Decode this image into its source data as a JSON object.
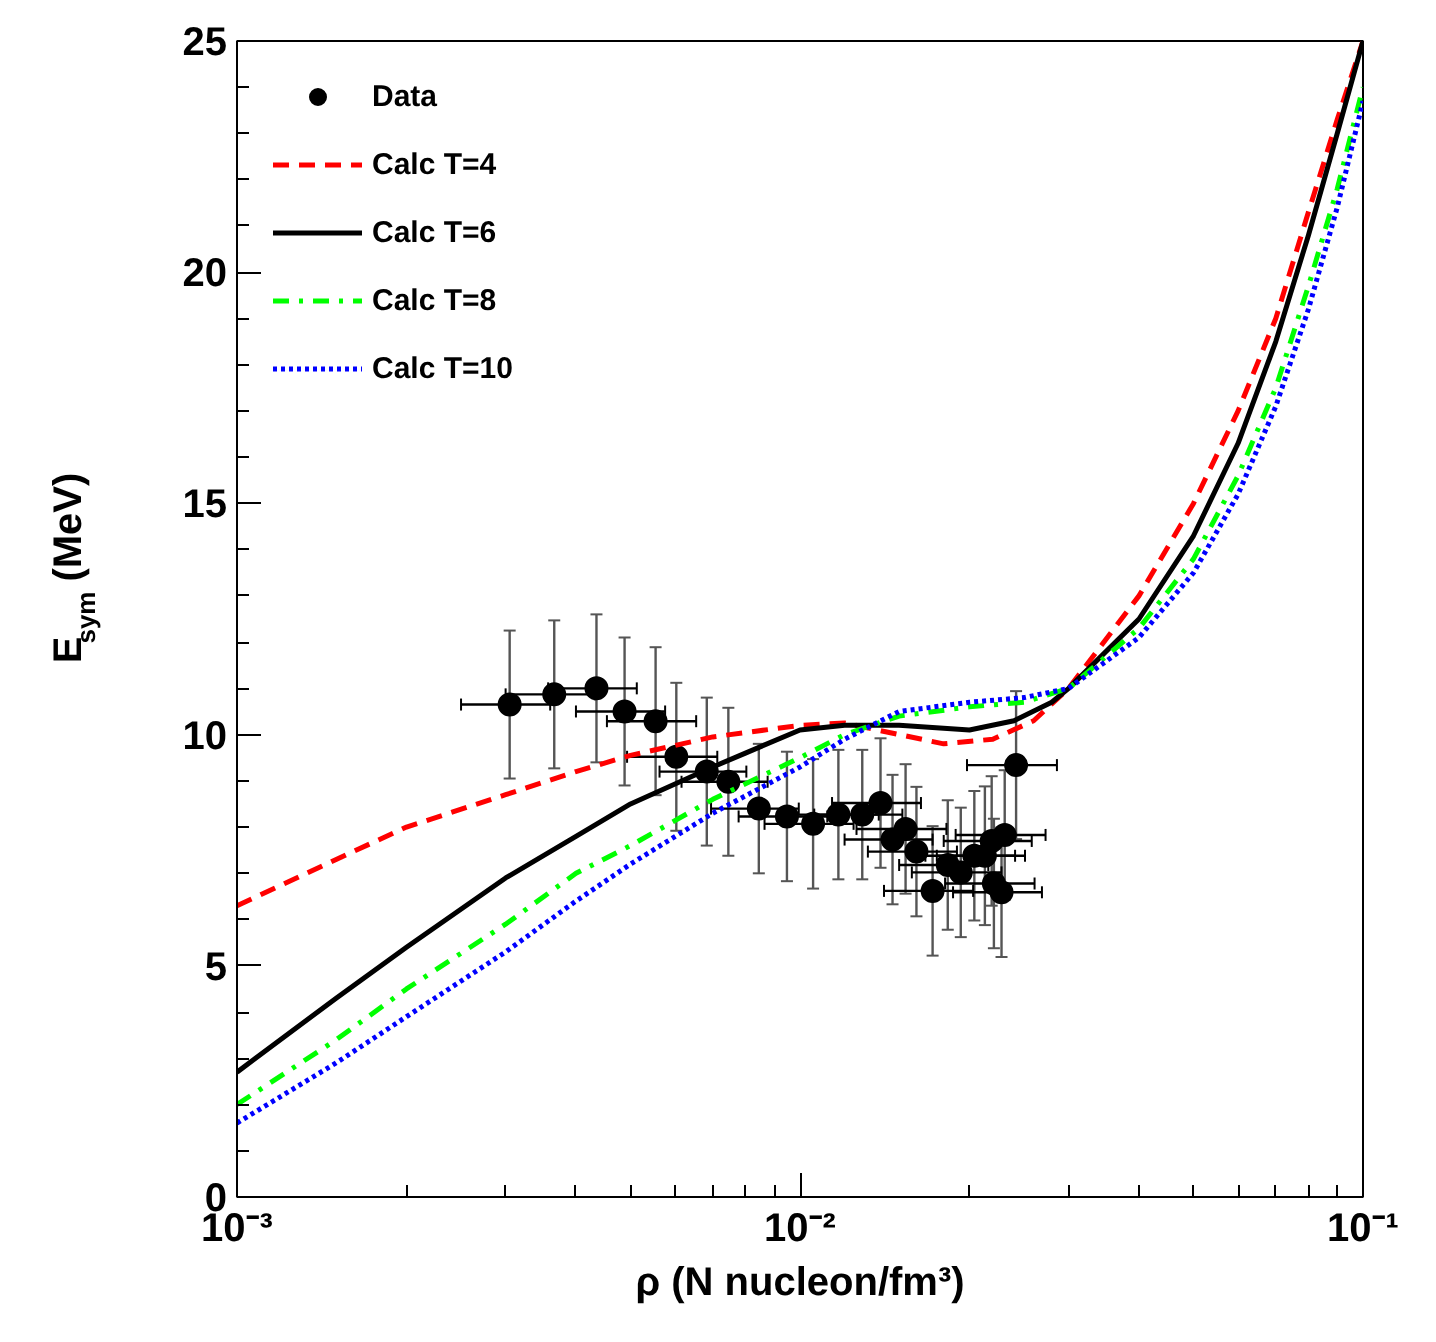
{
  "chart_data": {
    "type": "line",
    "xlabel": "ρ (N nucleon/fm³)",
    "ylabel": "E$_{sym}$ (MeV)",
    "log": "x",
    "grid": false,
    "legend": "top left",
    "xlim": [
      0.001,
      0.1
    ],
    "xticks": [
      {
        "value": 0.001,
        "label": "10⁻³"
      },
      {
        "value": 0.01,
        "label": "10⁻²"
      },
      {
        "value": 0.1,
        "label": "10⁻¹"
      }
    ],
    "ylim": [
      0,
      25
    ],
    "yticks": [
      0,
      5,
      10,
      15,
      20,
      25
    ],
    "series": [
      {
        "name": "Data",
        "type": "scatter",
        "marker": "circle",
        "color": "#000000",
        "x": [
          0.00305,
          0.00366,
          0.00435,
          0.00488,
          0.00554,
          0.00603,
          0.00683,
          0.00746,
          0.00845,
          0.00948,
          0.01055,
          0.0117,
          0.0129,
          0.0139,
          0.0146,
          0.0154,
          0.0161,
          0.0172,
          0.0183,
          0.0193,
          0.0204,
          0.0213,
          0.0219,
          0.0231,
          0.0221,
          0.0228,
          0.0242
        ],
        "values": [
          10.65,
          10.87,
          11.0,
          10.5,
          10.29,
          9.52,
          9.2,
          8.98,
          8.4,
          8.23,
          8.07,
          8.27,
          8.27,
          8.52,
          7.73,
          7.96,
          7.47,
          6.62,
          7.18,
          7.02,
          7.38,
          7.38,
          7.7,
          7.83,
          6.78,
          6.59,
          9.34
        ],
        "errors": [
          1.6,
          1.6,
          1.6,
          1.6,
          1.6,
          1.6,
          1.6,
          1.6,
          1.4,
          1.4,
          1.4,
          1.4,
          1.4,
          1.4,
          1.4,
          1.4,
          1.4,
          1.4,
          1.4,
          1.4,
          1.4,
          1.5,
          1.4,
          1.4,
          1.4,
          1.4,
          1.6
        ],
        "xerrors": [
          0.00055,
          0.00066,
          0.00078,
          0.00088,
          0.001,
          0.0011,
          0.0012,
          0.0013,
          0.0015,
          0.0017,
          0.0019,
          0.0021,
          0.0023,
          0.0025,
          0.0026,
          0.0028,
          0.0029,
          0.0031,
          0.0033,
          0.0035,
          0.0037,
          0.0038,
          0.0039,
          0.0042,
          0.004,
          0.0041,
          0.0044
        ]
      },
      {
        "name": "Calc T=4",
        "line_style": "dashed",
        "color": "#ff0000",
        "x": [
          0.001,
          0.0015,
          0.002,
          0.003,
          0.004,
          0.005,
          0.007,
          0.01,
          0.012,
          0.015,
          0.018,
          0.022,
          0.026,
          0.03,
          0.04,
          0.05,
          0.06,
          0.07,
          0.08,
          0.09,
          0.1
        ],
        "values": [
          6.3,
          7.3,
          8.0,
          8.7,
          9.2,
          9.55,
          9.95,
          10.2,
          10.25,
          10.0,
          9.8,
          9.9,
          10.3,
          11.0,
          13.0,
          15.0,
          17.0,
          19.0,
          21.3,
          23.3,
          25.0
        ]
      },
      {
        "name": "Calc T=6",
        "line_style": "solid",
        "color": "#000000",
        "x": [
          0.001,
          0.0015,
          0.002,
          0.003,
          0.004,
          0.005,
          0.007,
          0.008,
          0.01,
          0.012,
          0.015,
          0.02,
          0.024,
          0.028,
          0.03,
          0.04,
          0.05,
          0.06,
          0.07,
          0.08,
          0.09,
          0.1
        ],
        "values": [
          2.7,
          4.3,
          5.4,
          6.9,
          7.8,
          8.5,
          9.3,
          9.6,
          10.1,
          10.2,
          10.2,
          10.1,
          10.3,
          10.7,
          11.0,
          12.5,
          14.3,
          16.3,
          18.5,
          20.8,
          23.0,
          25.0
        ]
      },
      {
        "name": "Calc T=8",
        "line_style": "dashdot",
        "color": "#00ff00",
        "x": [
          0.001,
          0.0015,
          0.002,
          0.003,
          0.004,
          0.005,
          0.007,
          0.01,
          0.012,
          0.015,
          0.02,
          0.025,
          0.03,
          0.04,
          0.05,
          0.06,
          0.07,
          0.08,
          0.09,
          0.1
        ],
        "values": [
          2.0,
          3.4,
          4.5,
          5.9,
          7.0,
          7.6,
          8.6,
          9.5,
          10.0,
          10.4,
          10.6,
          10.7,
          11.0,
          12.3,
          13.8,
          15.6,
          17.5,
          19.7,
          21.8,
          24.0
        ]
      },
      {
        "name": "Calc T=10",
        "line_style": "dotted",
        "color": "#0000ff",
        "x": [
          0.001,
          0.0015,
          0.002,
          0.003,
          0.004,
          0.005,
          0.007,
          0.01,
          0.012,
          0.015,
          0.02,
          0.025,
          0.03,
          0.04,
          0.05,
          0.06,
          0.07,
          0.08,
          0.09,
          0.1
        ],
        "values": [
          1.6,
          2.9,
          3.9,
          5.3,
          6.4,
          7.2,
          8.3,
          9.3,
          9.9,
          10.5,
          10.7,
          10.8,
          11.0,
          12.1,
          13.5,
          15.2,
          17.1,
          19.2,
          21.4,
          23.7
        ]
      }
    ]
  }
}
